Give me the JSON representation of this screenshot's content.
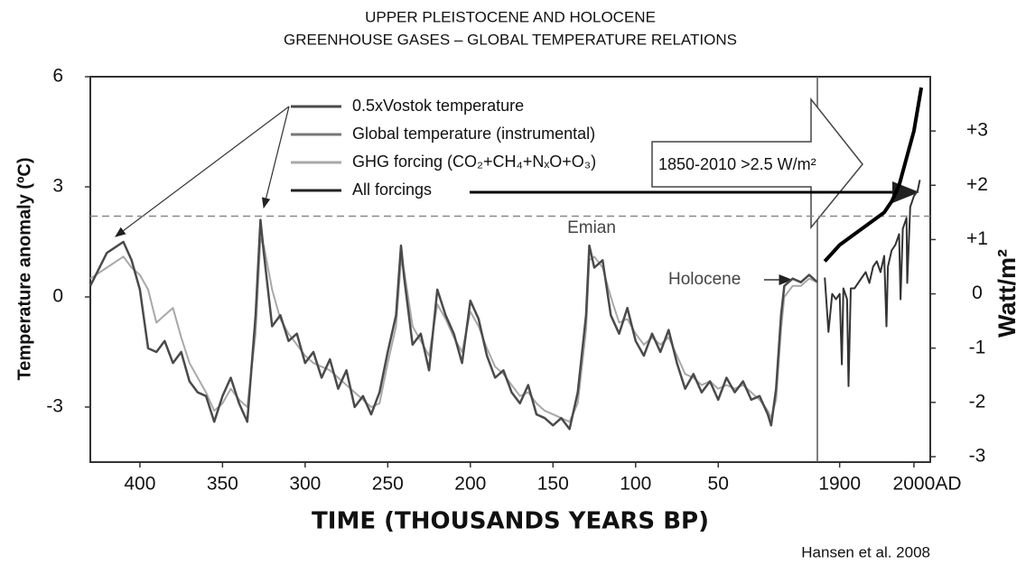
{
  "chart_data": {
    "type": "line",
    "title": [
      "UPPER PLEISTOCENE AND HOLOCENE",
      "GREENHOUSE GASES – GLOBAL TEMPERATURE RELATIONS"
    ],
    "ylabel": "Temperature anomaly (ºC)",
    "y2label": "Watt/m²",
    "xlabel": "TIME (THOUSANDS YEARS BP)",
    "x2unit": "AD",
    "source": "Hansen et al. 2008",
    "ylim": [
      -4.5,
      6
    ],
    "yticks": [
      -3,
      0,
      3,
      6
    ],
    "y2lim": [
      -3.1,
      4
    ],
    "y2ticks": [
      {
        "value": 3,
        "label": "+3"
      },
      {
        "value": 2,
        "label": "+2"
      },
      {
        "value": 1,
        "label": "+1"
      },
      0,
      -1,
      -2,
      -3
    ],
    "reference_line": 2.2,
    "legend": [
      {
        "name": "0.5xVostok temperature",
        "color": "#4a4a4a"
      },
      {
        "name": "Global temperature (instrumental)",
        "color": "#777777"
      },
      {
        "name": "GHG forcing (CO₂+CH₄+NₓO+O₃)",
        "color": "#a8a8a8"
      },
      {
        "name": "All forcings",
        "color": "#222222"
      }
    ],
    "annotations": [
      "Emian",
      "Holocene",
      "1850-2010 >2.5 W/m²"
    ],
    "panels": [
      {
        "xlim": [
          430,
          -10
        ],
        "xticks": [
          400,
          350,
          300,
          250,
          200,
          150,
          100,
          50
        ],
        "x": [
          430,
          420,
          410,
          405,
          400,
          395,
          390,
          385,
          380,
          375,
          370,
          365,
          360,
          355,
          350,
          345,
          340,
          335,
          330,
          327,
          325,
          320,
          315,
          310,
          305,
          300,
          295,
          290,
          285,
          280,
          275,
          270,
          265,
          260,
          255,
          250,
          245,
          242,
          240,
          235,
          230,
          225,
          220,
          215,
          210,
          205,
          200,
          195,
          190,
          185,
          180,
          175,
          170,
          165,
          160,
          155,
          150,
          145,
          140,
          135,
          130,
          128,
          125,
          120,
          115,
          110,
          105,
          100,
          95,
          90,
          85,
          80,
          75,
          70,
          65,
          60,
          55,
          50,
          45,
          40,
          35,
          30,
          25,
          20,
          18,
          15,
          12,
          10,
          5,
          0,
          -5,
          -10
        ],
        "series": [
          {
            "color": "#a8a8a8",
            "width": 2,
            "values": [
              0.5,
              0.8,
              1.1,
              0.8,
              0.6,
              0.2,
              -0.7,
              -0.5,
              -0.3,
              -1.1,
              -1.8,
              -2.2,
              -2.6,
              -3.1,
              -2.9,
              -2.5,
              -2.8,
              -3.0,
              -1.0,
              1.6,
              1.4,
              0.2,
              -0.6,
              -1.0,
              -1.3,
              -1.6,
              -1.8,
              -1.9,
              -2.0,
              -2.2,
              -2.4,
              -2.6,
              -2.8,
              -3.0,
              -2.9,
              -1.8,
              -0.8,
              1.0,
              0.7,
              -0.8,
              -1.2,
              -1.6,
              -0.2,
              -0.6,
              -1.1,
              -1.5,
              -0.4,
              -0.8,
              -1.4,
              -1.9,
              -2.1,
              -2.4,
              -2.7,
              -2.6,
              -2.9,
              -3.1,
              -3.2,
              -3.3,
              -3.4,
              -2.9,
              -0.9,
              1.0,
              1.1,
              0.8,
              0.0,
              -0.7,
              -0.6,
              -1.0,
              -1.3,
              -1.1,
              -1.3,
              -1.1,
              -1.6,
              -2.1,
              -2.2,
              -2.4,
              -2.3,
              -2.5,
              -2.4,
              -2.5,
              -2.4,
              -2.6,
              -2.8,
              -3.1,
              -3.3,
              -2.8,
              -0.9,
              0.0,
              0.3,
              0.3,
              0.5,
              0.4
            ]
          },
          {
            "color": "#4a4a4a",
            "width": 2.5,
            "values": [
              0.3,
              1.2,
              1.5,
              1.0,
              0.2,
              -1.4,
              -1.5,
              -1.2,
              -1.8,
              -1.5,
              -2.3,
              -2.6,
              -2.7,
              -3.4,
              -2.7,
              -2.2,
              -2.9,
              -3.4,
              -0.5,
              2.1,
              1.2,
              -0.8,
              -0.5,
              -1.2,
              -1.0,
              -1.8,
              -1.5,
              -2.2,
              -1.7,
              -2.5,
              -2.0,
              -3.0,
              -2.7,
              -3.2,
              -2.6,
              -1.5,
              -0.5,
              1.4,
              0.5,
              -1.3,
              -1.0,
              -2.0,
              0.2,
              -0.5,
              -1.0,
              -1.8,
              -0.1,
              -0.6,
              -1.6,
              -2.2,
              -2.0,
              -2.6,
              -2.9,
              -2.4,
              -3.2,
              -3.3,
              -3.5,
              -3.3,
              -3.6,
              -2.6,
              -0.5,
              1.4,
              0.8,
              1.0,
              -0.5,
              -1.0,
              -0.3,
              -1.2,
              -1.6,
              -1.0,
              -1.5,
              -0.9,
              -1.8,
              -2.5,
              -2.1,
              -2.6,
              -2.3,
              -2.8,
              -2.2,
              -2.6,
              -2.3,
              -2.8,
              -2.7,
              -3.2,
              -3.5,
              -2.5,
              -0.5,
              0.3,
              0.5,
              0.4,
              0.6,
              0.4
            ]
          }
        ]
      },
      {
        "xlim": [
          1870,
          2022
        ],
        "xticks": [
          1900,
          2000
        ],
        "x": [
          1880,
          1885,
          1890,
          1895,
          1900,
          1903,
          1905,
          1910,
          1912,
          1915,
          1920,
          1925,
          1930,
          1935,
          1940,
          1945,
          1950,
          1955,
          1960,
          1963,
          1965,
          1970,
          1975,
          1980,
          1982,
          1985,
          1990,
          1991,
          1995,
          2000,
          2005,
          2008
        ],
        "series": [
          {
            "color": "#333333",
            "width": 2,
            "axis": "y2",
            "values": [
              0.3,
              -0.7,
              0.0,
              -0.1,
              0.0,
              -1.3,
              0.1,
              -0.1,
              -1.7,
              0.1,
              0.1,
              0.2,
              0.3,
              0.4,
              0.2,
              0.5,
              0.6,
              0.4,
              0.7,
              -0.6,
              0.5,
              0.8,
              0.9,
              1.1,
              -0.1,
              1.2,
              1.4,
              0.2,
              1.6,
              1.8,
              1.9,
              2.1
            ]
          },
          {
            "color": "#000000",
            "width": 4,
            "axis": "y2",
            "x": [
              1880,
              1900,
              1920,
              1940,
              1960,
              1970,
              1980,
              1990,
              2000,
              2005,
              2010
            ],
            "values": [
              0.6,
              0.9,
              1.1,
              1.3,
              1.5,
              1.7,
              2.0,
              2.5,
              3.0,
              3.4,
              3.8
            ]
          }
        ]
      }
    ]
  }
}
